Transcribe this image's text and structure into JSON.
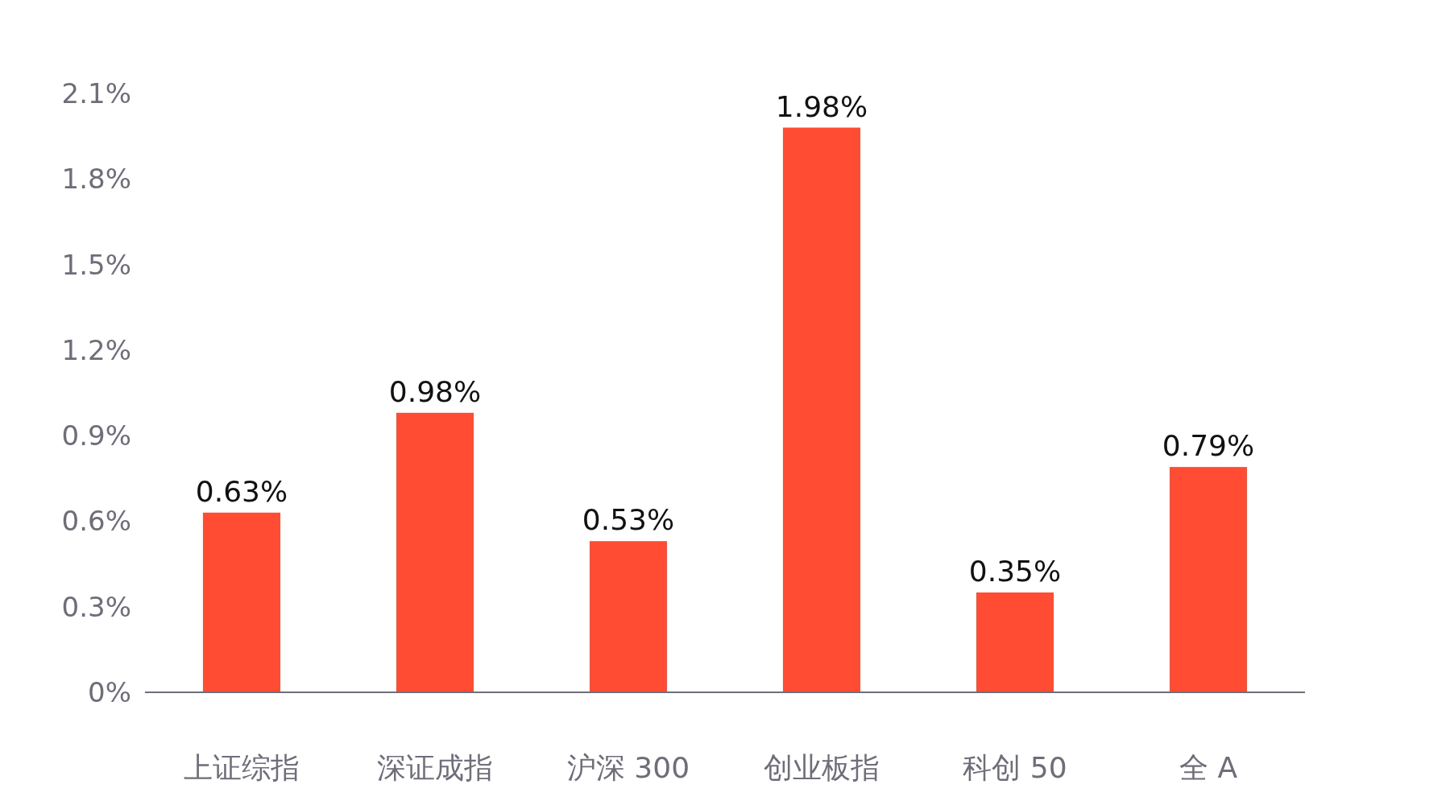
{
  "chart_data": {
    "type": "bar",
    "categories": [
      "上证综指",
      "深证成指",
      "沪深 300",
      "创业板指",
      "科创 50",
      "全 A"
    ],
    "values": [
      0.63,
      0.98,
      0.53,
      1.98,
      0.35,
      0.79
    ],
    "value_labels": [
      "0.63%",
      "0.98%",
      "0.53%",
      "1.98%",
      "0.35%",
      "0.79%"
    ],
    "color": "#ff4c33",
    "ylim": [
      0,
      2.1
    ],
    "yticks": [
      {
        "value": 0,
        "label": "0%"
      },
      {
        "value": 0.3,
        "label": "0.3%"
      },
      {
        "value": 0.6,
        "label": "0.6%"
      },
      {
        "value": 0.9,
        "label": "0.9%"
      },
      {
        "value": 1.2,
        "label": "1.2%"
      },
      {
        "value": 1.5,
        "label": "1.5%"
      },
      {
        "value": 1.8,
        "label": "1.8%"
      },
      {
        "value": 2.1,
        "label": "2.1%"
      }
    ]
  }
}
